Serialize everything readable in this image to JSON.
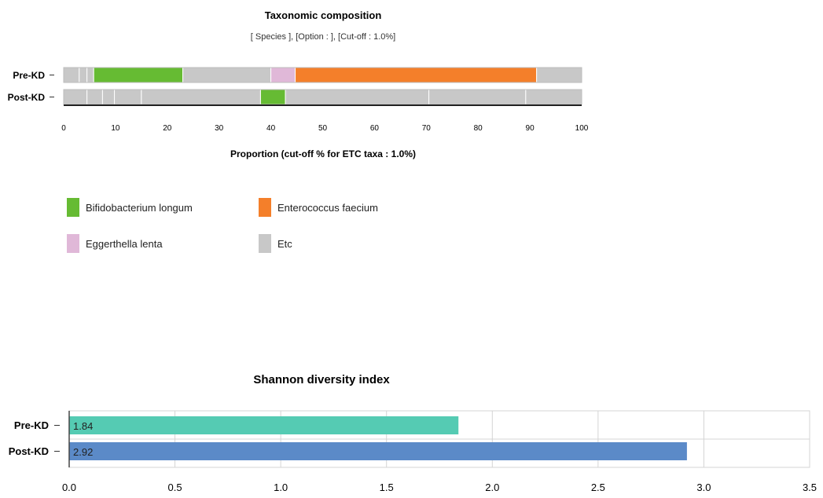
{
  "chart_data": [
    {
      "type": "bar",
      "orientation": "horizontal",
      "stacked": true,
      "title": "Taxonomic composition",
      "subtitle": "[ Species ], [Option : ], [Cut-off : 1.0%]",
      "xlabel": "Proportion (cut-off % for ETC taxa : 1.0%)",
      "xlim": [
        0,
        100
      ],
      "xticks": [
        0,
        10,
        20,
        30,
        40,
        50,
        60,
        70,
        80,
        90,
        100
      ],
      "categories": [
        "Pre-KD",
        "Post-KD"
      ],
      "legend": {
        "placement": "bottom",
        "items": [
          {
            "name": "Bifidobacterium longum",
            "color": "#66bb33"
          },
          {
            "name": "Enterococcus faecium",
            "color": "#f47f2a"
          },
          {
            "name": "Eggerthella lenta",
            "color": "#e0b8d8"
          },
          {
            "name": "Etc",
            "color": "#c8c8c8"
          }
        ]
      },
      "segments": [
        [
          {
            "taxon": "Etc",
            "start": 0,
            "end": 3.0
          },
          {
            "taxon": "Etc",
            "start": 3.0,
            "end": 4.5
          },
          {
            "taxon": "Etc",
            "start": 4.5,
            "end": 5.8
          },
          {
            "taxon": "Bifidobacterium longum",
            "start": 5.8,
            "end": 23.0
          },
          {
            "taxon": "Etc",
            "start": 23.0,
            "end": 40.0
          },
          {
            "taxon": "Eggerthella lenta",
            "start": 40.0,
            "end": 44.7
          },
          {
            "taxon": "Enterococcus faecium",
            "start": 44.7,
            "end": 91.3
          },
          {
            "taxon": "Etc",
            "start": 91.3,
            "end": 100
          }
        ],
        [
          {
            "taxon": "Etc",
            "start": 0,
            "end": 4.5
          },
          {
            "taxon": "Etc",
            "start": 4.5,
            "end": 7.5
          },
          {
            "taxon": "Etc",
            "start": 7.5,
            "end": 9.8
          },
          {
            "taxon": "Etc",
            "start": 9.8,
            "end": 15.0
          },
          {
            "taxon": "Etc",
            "start": 15.0,
            "end": 38.0
          },
          {
            "taxon": "Bifidobacterium longum",
            "start": 38.0,
            "end": 42.8
          },
          {
            "taxon": "Etc",
            "start": 42.8,
            "end": 70.5
          },
          {
            "taxon": "Etc",
            "start": 70.5,
            "end": 89.2
          },
          {
            "taxon": "Etc",
            "start": 89.2,
            "end": 100
          }
        ]
      ]
    },
    {
      "type": "bar",
      "orientation": "horizontal",
      "title": "Shannon diversity index",
      "categories": [
        "Pre-KD",
        "Post-KD"
      ],
      "values": [
        1.84,
        2.92
      ],
      "value_labels": [
        "1.84",
        "2.92"
      ],
      "colors": [
        "#55cbb3",
        "#5b8ac8"
      ],
      "xlim": [
        0,
        3.5
      ],
      "xticks": [
        "0.0",
        "0.5",
        "1.0",
        "1.5",
        "2.0",
        "2.5",
        "3.0",
        "3.5"
      ],
      "grid": true
    }
  ]
}
